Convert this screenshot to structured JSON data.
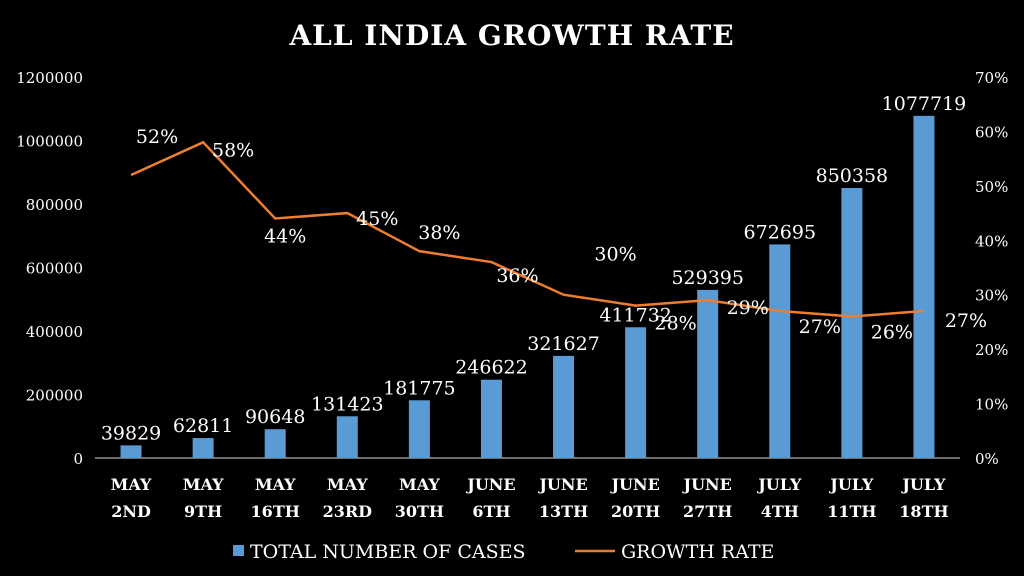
{
  "chart_data": {
    "type": "bar+line",
    "title": "ALL INDIA GROWTH RATE",
    "categories": [
      [
        "MAY",
        "2ND"
      ],
      [
        "MAY",
        "9TH"
      ],
      [
        "MAY",
        "16TH"
      ],
      [
        "MAY",
        "23RD"
      ],
      [
        "MAY",
        "30TH"
      ],
      [
        "JUNE",
        "6TH"
      ],
      [
        "JUNE",
        "13TH"
      ],
      [
        "JUNE",
        "20TH"
      ],
      [
        "JUNE",
        "27TH"
      ],
      [
        "JULY",
        "4TH"
      ],
      [
        "JULY",
        "11TH"
      ],
      [
        "JULY",
        "18TH"
      ]
    ],
    "series": [
      {
        "name": "TOTAL NUMBER OF CASES",
        "type": "bar",
        "axis": "left",
        "color": "#5b9bd5",
        "values": [
          39829,
          62811,
          90648,
          131423,
          181775,
          246622,
          321627,
          411732,
          529395,
          672695,
          850358,
          1077719
        ]
      },
      {
        "name": "GROWTH RATE",
        "type": "line",
        "axis": "right",
        "color": "#ed7d31",
        "values": [
          52,
          58,
          44,
          45,
          38,
          36,
          30,
          28,
          29,
          27,
          26,
          27
        ]
      }
    ],
    "y_left": {
      "min": 0,
      "max": 1200000,
      "ticks": [
        "0",
        "200000",
        "400000",
        "600000",
        "800000",
        "1000000",
        "1200000"
      ]
    },
    "y_right": {
      "min": 0,
      "max": 70,
      "ticks": [
        "0%",
        "10%",
        "20%",
        "30%",
        "40%",
        "50%",
        "60%",
        "70%"
      ]
    },
    "grid": false,
    "legend": "bottom"
  }
}
